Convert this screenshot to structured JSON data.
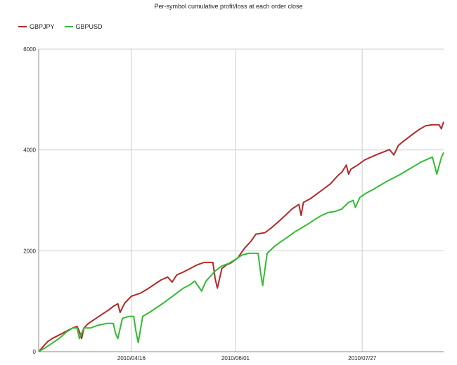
{
  "chart_data": {
    "type": "line",
    "title": "Per-symbol cumulative profit/loss at each order close",
    "xlabel": "",
    "ylabel": "",
    "xlim": [
      "2010-03-06",
      "2010-09-01"
    ],
    "ylim": [
      0,
      6000
    ],
    "yticks": [
      0,
      2000,
      4000,
      6000
    ],
    "xticks": [
      "2010/04/16",
      "2010/06/01",
      "2010/07/27"
    ],
    "grid": true,
    "legend_position": "top-left",
    "series": [
      {
        "name": "GBPJPY",
        "color": "#b22a2a",
        "points": [
          [
            "2010-03-06",
            0
          ],
          [
            "2010-03-08",
            100
          ],
          [
            "2010-03-10",
            200
          ],
          [
            "2010-03-12",
            260
          ],
          [
            "2010-03-15",
            330
          ],
          [
            "2010-03-18",
            400
          ],
          [
            "2010-03-21",
            470
          ],
          [
            "2010-03-23",
            500
          ],
          [
            "2010-03-24",
            400
          ],
          [
            "2010-03-25",
            260
          ],
          [
            "2010-03-26",
            470
          ],
          [
            "2010-03-28",
            560
          ],
          [
            "2010-03-31",
            650
          ],
          [
            "2010-04-03",
            740
          ],
          [
            "2010-04-06",
            830
          ],
          [
            "2010-04-08",
            900
          ],
          [
            "2010-04-10",
            950
          ],
          [
            "2010-04-11",
            780
          ],
          [
            "2010-04-13",
            960
          ],
          [
            "2010-04-16",
            1100
          ],
          [
            "2010-04-18",
            1130
          ],
          [
            "2010-04-20",
            1160
          ],
          [
            "2010-04-23",
            1240
          ],
          [
            "2010-04-26",
            1330
          ],
          [
            "2010-04-29",
            1420
          ],
          [
            "2010-05-02",
            1480
          ],
          [
            "2010-05-04",
            1380
          ],
          [
            "2010-05-06",
            1520
          ],
          [
            "2010-05-09",
            1580
          ],
          [
            "2010-05-12",
            1650
          ],
          [
            "2010-05-15",
            1720
          ],
          [
            "2010-05-18",
            1770
          ],
          [
            "2010-05-22",
            1770
          ],
          [
            "2010-05-23",
            1450
          ],
          [
            "2010-05-24",
            1260
          ],
          [
            "2010-05-26",
            1650
          ],
          [
            "2010-05-28",
            1720
          ],
          [
            "2010-05-30",
            1760
          ],
          [
            "2010-06-02",
            1860
          ],
          [
            "2010-06-05",
            2050
          ],
          [
            "2010-06-08",
            2200
          ],
          [
            "2010-06-10",
            2330
          ],
          [
            "2010-06-14",
            2360
          ],
          [
            "2010-06-17",
            2460
          ],
          [
            "2010-06-20",
            2580
          ],
          [
            "2010-06-23",
            2700
          ],
          [
            "2010-06-26",
            2830
          ],
          [
            "2010-06-29",
            2920
          ],
          [
            "2010-06-30",
            2700
          ],
          [
            "2010-07-01",
            2960
          ],
          [
            "2010-07-04",
            3030
          ],
          [
            "2010-07-07",
            3130
          ],
          [
            "2010-07-10",
            3230
          ],
          [
            "2010-07-13",
            3330
          ],
          [
            "2010-07-16",
            3480
          ],
          [
            "2010-07-18",
            3560
          ],
          [
            "2010-07-20",
            3700
          ],
          [
            "2010-07-21",
            3520
          ],
          [
            "2010-07-22",
            3620
          ],
          [
            "2010-07-25",
            3700
          ],
          [
            "2010-07-28",
            3800
          ],
          [
            "2010-07-31",
            3860
          ],
          [
            "2010-08-03",
            3920
          ],
          [
            "2010-08-06",
            3970
          ],
          [
            "2010-08-08",
            4010
          ],
          [
            "2010-08-10",
            3900
          ],
          [
            "2010-08-12",
            4090
          ],
          [
            "2010-08-15",
            4200
          ],
          [
            "2010-08-18",
            4300
          ],
          [
            "2010-08-21",
            4400
          ],
          [
            "2010-08-24",
            4480
          ],
          [
            "2010-08-27",
            4500
          ],
          [
            "2010-08-30",
            4500
          ],
          [
            "2010-08-31",
            4420
          ],
          [
            "2010-09-01",
            4560
          ]
        ]
      },
      {
        "name": "GBPUSD",
        "color": "#33bb33",
        "points": [
          [
            "2010-03-06",
            0
          ],
          [
            "2010-03-09",
            80
          ],
          [
            "2010-03-12",
            170
          ],
          [
            "2010-03-15",
            260
          ],
          [
            "2010-03-18",
            380
          ],
          [
            "2010-03-21",
            470
          ],
          [
            "2010-03-23",
            470
          ],
          [
            "2010-03-24",
            260
          ],
          [
            "2010-03-26",
            470
          ],
          [
            "2010-03-29",
            470
          ],
          [
            "2010-04-01",
            520
          ],
          [
            "2010-04-05",
            560
          ],
          [
            "2010-04-08",
            560
          ],
          [
            "2010-04-09",
            360
          ],
          [
            "2010-04-10",
            260
          ],
          [
            "2010-04-12",
            660
          ],
          [
            "2010-04-15",
            700
          ],
          [
            "2010-04-17",
            700
          ],
          [
            "2010-04-18",
            400
          ],
          [
            "2010-04-19",
            180
          ],
          [
            "2010-04-21",
            700
          ],
          [
            "2010-04-24",
            780
          ],
          [
            "2010-04-27",
            870
          ],
          [
            "2010-04-30",
            960
          ],
          [
            "2010-05-03",
            1060
          ],
          [
            "2010-05-06",
            1160
          ],
          [
            "2010-05-09",
            1260
          ],
          [
            "2010-05-12",
            1330
          ],
          [
            "2010-05-14",
            1400
          ],
          [
            "2010-05-16",
            1270
          ],
          [
            "2010-05-17",
            1200
          ],
          [
            "2010-05-19",
            1400
          ],
          [
            "2010-05-21",
            1500
          ],
          [
            "2010-05-23",
            1600
          ],
          [
            "2010-05-26",
            1700
          ],
          [
            "2010-05-29",
            1750
          ],
          [
            "2010-06-01",
            1830
          ],
          [
            "2010-06-04",
            1920
          ],
          [
            "2010-06-07",
            1950
          ],
          [
            "2010-06-11",
            1950
          ],
          [
            "2010-06-12",
            1600
          ],
          [
            "2010-06-13",
            1310
          ],
          [
            "2010-06-15",
            1950
          ],
          [
            "2010-06-18",
            2080
          ],
          [
            "2010-06-21",
            2180
          ],
          [
            "2010-06-24",
            2270
          ],
          [
            "2010-06-27",
            2370
          ],
          [
            "2010-06-30",
            2450
          ],
          [
            "2010-07-03",
            2530
          ],
          [
            "2010-07-06",
            2620
          ],
          [
            "2010-07-09",
            2700
          ],
          [
            "2010-07-12",
            2760
          ],
          [
            "2010-07-15",
            2780
          ],
          [
            "2010-07-18",
            2830
          ],
          [
            "2010-07-21",
            2960
          ],
          [
            "2010-07-23",
            3000
          ],
          [
            "2010-07-24",
            2860
          ],
          [
            "2010-07-26",
            3060
          ],
          [
            "2010-07-29",
            3150
          ],
          [
            "2010-08-01",
            3220
          ],
          [
            "2010-08-04",
            3300
          ],
          [
            "2010-08-07",
            3380
          ],
          [
            "2010-08-10",
            3450
          ],
          [
            "2010-08-13",
            3520
          ],
          [
            "2010-08-16",
            3600
          ],
          [
            "2010-08-19",
            3680
          ],
          [
            "2010-08-22",
            3760
          ],
          [
            "2010-08-25",
            3820
          ],
          [
            "2010-08-27",
            3860
          ],
          [
            "2010-08-28",
            3700
          ],
          [
            "2010-08-29",
            3520
          ],
          [
            "2010-08-31",
            3850
          ],
          [
            "2010-09-01",
            3950
          ]
        ]
      }
    ]
  }
}
